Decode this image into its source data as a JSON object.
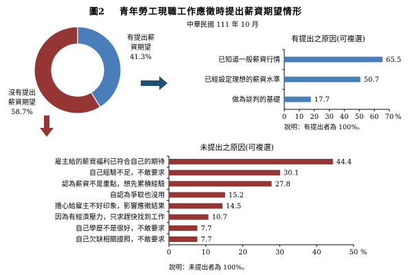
{
  "figure": {
    "number": "圖2",
    "title": "青年勞工現職工作應徵時提出薪資期望情形",
    "date": "中華民國 111 年 10 月"
  },
  "colors": {
    "blue": "#4a7ebb",
    "red": "#963634",
    "arrow": "#1f4e79",
    "axis": "#000000"
  },
  "chart_data": [
    {
      "type": "pie",
      "variant": "donut",
      "categories": [
        "有提出薪資期望",
        "沒有提出薪資期望"
      ],
      "values": [
        41.3,
        58.7
      ],
      "value_labels": [
        "41.3%",
        "58.7%"
      ],
      "label_lines": [
        [
          "有提出薪",
          "資期望"
        ],
        [
          "沒有提出",
          "薪資期望"
        ]
      ],
      "colors": [
        "#4a7ebb",
        "#963634"
      ]
    },
    {
      "type": "bar",
      "orientation": "horizontal",
      "title": "有提出之原因(可複選)",
      "categories": [
        "已知道一般薪資行情",
        "已經設定理想的薪資水準",
        "做為談判的基礎"
      ],
      "values": [
        65.5,
        50.7,
        17.7
      ],
      "value_labels": [
        "65.5",
        "50.7",
        "17.7"
      ],
      "xlim": [
        0,
        70
      ],
      "xticks": [
        "0",
        "10",
        "20",
        "30",
        "40",
        "50",
        "60",
        "70"
      ],
      "unit": "%",
      "note": "說明：有提出者為 100%。",
      "color": "#4a7ebb",
      "grid": false
    },
    {
      "type": "bar",
      "orientation": "horizontal",
      "title": "未提出之原因(可複選)",
      "categories": [
        "雇主給的薪資福利已符合自己的期待",
        "自己經驗不足，不敢要求",
        "認為薪資不是重點，想先累積經驗",
        "自認為爭取也沒用",
        "擔心給雇主不好印象，影響應徵結果",
        "因為有經濟壓力，只求趕快找到工作",
        "自己學歷不是很好，不敢要求",
        "自己欠缺相關證照，不敢要求"
      ],
      "values": [
        44.4,
        30.1,
        27.8,
        15.2,
        14.5,
        10.7,
        7.7,
        7.7
      ],
      "value_labels": [
        "44.4",
        "30.1",
        "27.8",
        "15.2",
        "14.5",
        "10.7",
        "7.7",
        "7.7"
      ],
      "xlim": [
        0,
        50
      ],
      "xticks": [
        "0",
        "10",
        "20",
        "30",
        "40",
        "50"
      ],
      "unit": "%",
      "note": "說明：未提出者為 100%。",
      "color": "#963634",
      "grid": false
    }
  ]
}
